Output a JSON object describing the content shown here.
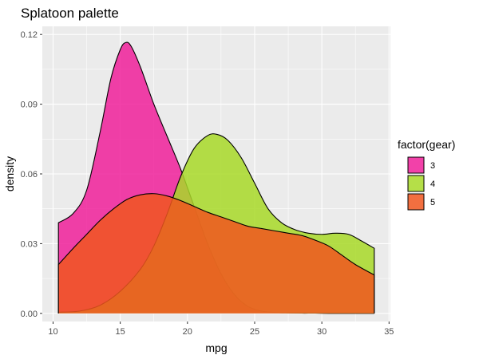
{
  "chart_data": {
    "type": "area",
    "title": "Splatoon palette",
    "xlabel": "mpg",
    "ylabel": "density",
    "xlim": [
      9.2,
      35.1
    ],
    "ylim": [
      -0.0035,
      0.1235
    ],
    "x_ticks": [
      10,
      15,
      20,
      25,
      30,
      35
    ],
    "y_ticks": [
      0.0,
      0.03,
      0.06,
      0.09,
      0.12
    ],
    "y_tick_labels": [
      "0.00",
      "0.03",
      "0.06",
      "0.09",
      "0.12"
    ],
    "grid": true,
    "legend": {
      "title": "factor(gear)",
      "position": "right"
    },
    "series": [
      {
        "name": "3",
        "color": "#F0209A",
        "x": [
          10.4,
          11.5,
          12.5,
          13.5,
          14.3,
          15.0,
          15.4,
          15.8,
          16.5,
          17.5,
          18.5,
          19.5,
          20.5,
          21.5,
          22.5,
          23.5,
          24.5,
          25.5,
          26.5,
          27.5,
          28.5,
          29.5,
          30.5,
          31.5,
          32.5,
          33.9
        ],
        "y": [
          0.039,
          0.043,
          0.053,
          0.078,
          0.101,
          0.1135,
          0.1165,
          0.115,
          0.106,
          0.09,
          0.076,
          0.062,
          0.046,
          0.03,
          0.017,
          0.008,
          0.003,
          0.001,
          0.0004,
          0.0002,
          0.0001,
          0.0001,
          0.0,
          0.0,
          0.0,
          0.0
        ]
      },
      {
        "name": "4",
        "color": "#A8D928",
        "x": [
          10.4,
          12.0,
          13.5,
          15.0,
          16.5,
          17.5,
          18.5,
          19.5,
          20.5,
          21.5,
          22.2,
          23.0,
          24.0,
          25.0,
          26.0,
          27.0,
          28.0,
          29.0,
          30.0,
          31.0,
          32.0,
          33.0,
          33.9
        ],
        "y": [
          0.0005,
          0.001,
          0.0035,
          0.0095,
          0.019,
          0.029,
          0.043,
          0.059,
          0.071,
          0.0765,
          0.077,
          0.0745,
          0.067,
          0.056,
          0.045,
          0.039,
          0.036,
          0.0345,
          0.034,
          0.0345,
          0.034,
          0.031,
          0.028
        ]
      },
      {
        "name": "5",
        "color": "#F0561E",
        "x": [
          10.4,
          11.5,
          12.5,
          13.5,
          14.5,
          15.5,
          16.5,
          17.5,
          18.5,
          19.5,
          20.5,
          21.5,
          22.5,
          23.5,
          24.5,
          25.5,
          26.5,
          27.5,
          28.5,
          29.5,
          30.5,
          31.5,
          32.5,
          33.9
        ],
        "y": [
          0.021,
          0.028,
          0.034,
          0.04,
          0.045,
          0.049,
          0.051,
          0.0515,
          0.0505,
          0.0485,
          0.046,
          0.0435,
          0.0415,
          0.0395,
          0.0375,
          0.0365,
          0.0355,
          0.0345,
          0.0335,
          0.0315,
          0.029,
          0.025,
          0.021,
          0.0165
        ]
      }
    ]
  }
}
